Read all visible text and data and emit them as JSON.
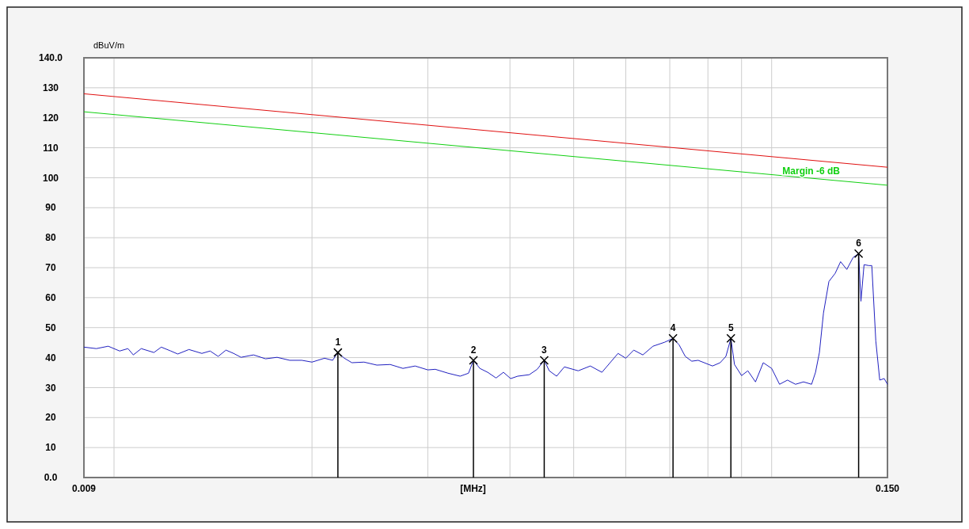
{
  "chart_data": {
    "type": "line",
    "xlabel": "[MHz]",
    "ylabel": "dBuV/m",
    "log": "x",
    "grid": true,
    "xlim": [
      0.009,
      0.15
    ],
    "xticks": [
      {
        "value": 0.009,
        "label": "0.009"
      },
      {
        "value": 0.01,
        "label": null
      },
      {
        "value": 0.02,
        "label": null
      },
      {
        "value": 0.03,
        "label": null
      },
      {
        "value": 0.04,
        "label": null
      },
      {
        "value": 0.05,
        "label": null
      },
      {
        "value": 0.06,
        "label": null
      },
      {
        "value": 0.07,
        "label": null
      },
      {
        "value": 0.08,
        "label": null
      },
      {
        "value": 0.09,
        "label": null
      },
      {
        "value": 0.1,
        "label": null
      },
      {
        "value": 0.15,
        "label": "0.150"
      }
    ],
    "ylim": [
      0,
      140
    ],
    "yticks": [
      {
        "value": 0,
        "label": "0.0"
      },
      10,
      20,
      30,
      40,
      50,
      60,
      70,
      80,
      90,
      100,
      110,
      120,
      130,
      {
        "value": 140,
        "label": "140.0"
      }
    ],
    "series": [
      {
        "color": "#2020c0",
        "x": [
          0.009,
          0.0094,
          0.0098,
          0.0102,
          0.0105,
          0.0107,
          0.011,
          0.0115,
          0.0118,
          0.0122,
          0.0125,
          0.013,
          0.0136,
          0.014,
          0.0144,
          0.0148,
          0.0152,
          0.0156,
          0.0163,
          0.017,
          0.0177,
          0.0185,
          0.0193,
          0.02,
          0.0209,
          0.0215,
          0.0219,
          0.0224,
          0.023,
          0.024,
          0.0251,
          0.0263,
          0.0275,
          0.0287,
          0.03,
          0.0308,
          0.0322,
          0.0336,
          0.0346,
          0.0352,
          0.036,
          0.037,
          0.0381,
          0.0391,
          0.0401,
          0.0411,
          0.0428,
          0.044,
          0.0451,
          0.0459,
          0.0471,
          0.0484,
          0.0508,
          0.053,
          0.0552,
          0.0568,
          0.0584,
          0.06,
          0.0617,
          0.0637,
          0.066,
          0.0687,
          0.0708,
          0.0723,
          0.0739,
          0.0756,
          0.0773,
          0.0813,
          0.0835,
          0.0852,
          0.0867,
          0.0878,
          0.09,
          0.092,
          0.0945,
          0.0971,
          0.1,
          0.1028,
          0.1057,
          0.1087,
          0.1118,
          0.115,
          0.1166,
          0.1182,
          0.1199,
          0.1222,
          0.1249,
          0.1273,
          0.1301,
          0.133,
          0.1356,
          0.1367,
          0.1382,
          0.1405,
          0.142,
          0.144,
          0.146,
          0.1483,
          0.15
        ],
        "values": [
          43.5,
          43.0,
          43.8,
          42.2,
          43.0,
          40.9,
          43.0,
          41.7,
          43.5,
          42.2,
          41.2,
          42.7,
          41.4,
          42.2,
          40.4,
          42.5,
          41.4,
          40.1,
          40.9,
          39.6,
          40.1,
          39.1,
          39.1,
          38.5,
          39.8,
          39.1,
          41.7,
          39.8,
          38.3,
          38.5,
          37.5,
          37.7,
          36.4,
          37.2,
          35.9,
          36.1,
          34.8,
          33.8,
          34.8,
          39.1,
          36.4,
          35.1,
          33.2,
          35.1,
          33.0,
          33.8,
          34.3,
          36.1,
          39.1,
          35.6,
          33.8,
          36.9,
          35.6,
          37.2,
          35.1,
          38.3,
          41.4,
          39.8,
          42.5,
          40.9,
          43.8,
          45.1,
          46.4,
          44.3,
          40.4,
          38.8,
          39.1,
          37.2,
          38.3,
          40.4,
          46.4,
          37.7,
          34.0,
          35.6,
          31.9,
          38.3,
          36.4,
          31.1,
          32.5,
          31.1,
          31.9,
          31.1,
          35.1,
          41.7,
          54.9,
          65.4,
          68.1,
          72.0,
          69.4,
          73.4,
          74.7,
          58.8,
          71.0,
          70.7,
          70.7,
          45.6,
          32.5,
          33.0,
          31.1
        ]
      },
      {
        "color": "#e01010",
        "x": [
          0.009,
          0.15
        ],
        "values": [
          128,
          103.5
        ]
      },
      {
        "name": "Margin -6 dB",
        "color": "#10d010",
        "x": [
          0.009,
          0.15
        ],
        "values": [
          122,
          97.5
        ]
      },
      {
        "type": "lollipop",
        "color": "#000000",
        "marker": "cross",
        "x": [
          0.0219,
          0.0352,
          0.0451,
          0.0708,
          0.0867,
          0.1356
        ],
        "values": [
          41.7,
          39.1,
          39.1,
          46.4,
          46.4,
          74.7
        ]
      }
    ],
    "annotations": [
      {
        "text": "1",
        "x": 0.0219,
        "y": 41.7
      },
      {
        "text": "2",
        "x": 0.0352,
        "y": 39.1
      },
      {
        "text": "3",
        "x": 0.0451,
        "y": 39.1
      },
      {
        "text": "4",
        "x": 0.0708,
        "y": 46.4
      },
      {
        "text": "5",
        "x": 0.0867,
        "y": 46.4
      },
      {
        "text": "6",
        "x": 0.1356,
        "y": 74.7
      }
    ]
  }
}
